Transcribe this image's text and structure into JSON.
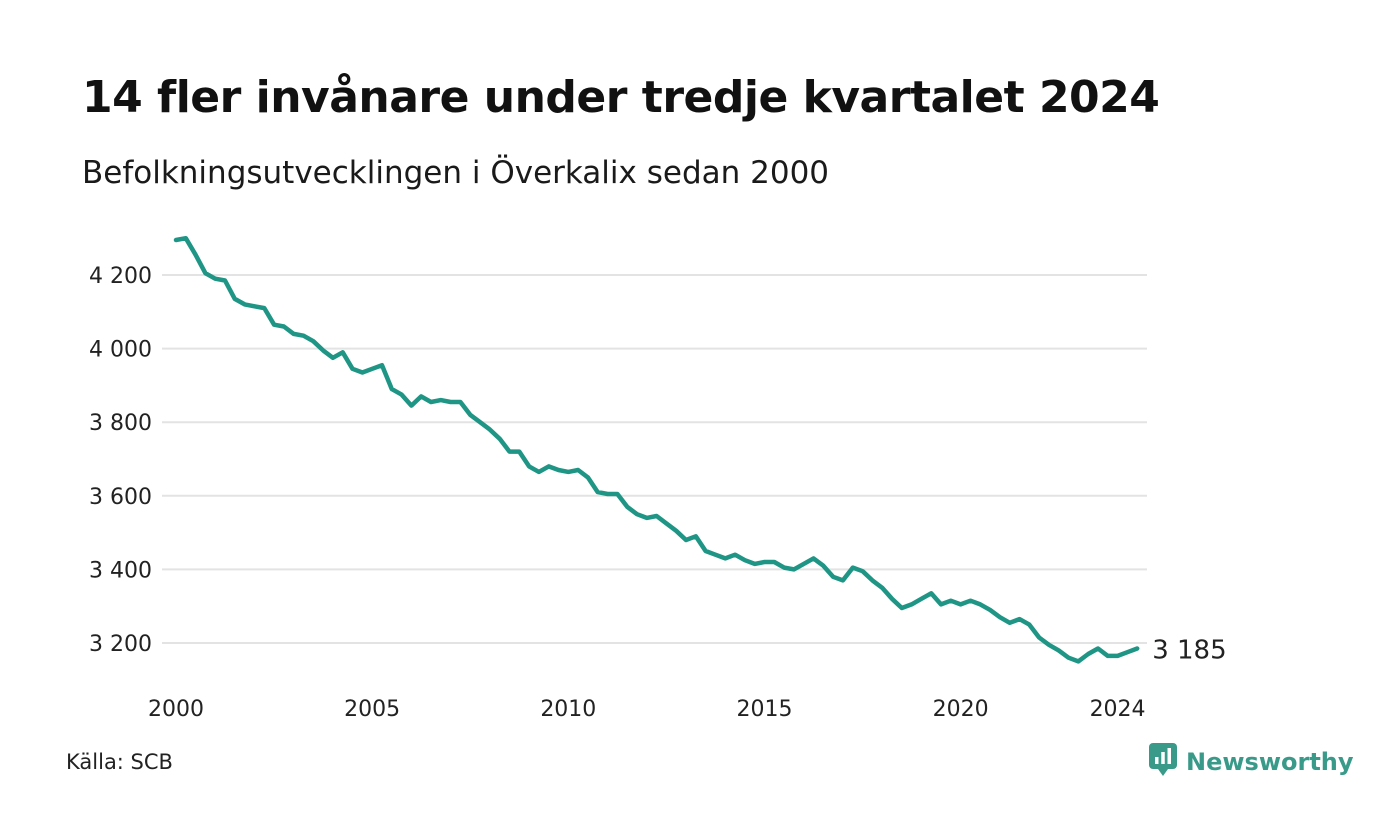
{
  "title": "14 fler invånare under tredje kvartalet 2024",
  "subtitle": "Befolkningsutvecklingen i Överkalix sedan 2000",
  "source": "Källa: SCB",
  "brand": {
    "name": "Newsworthy",
    "icon": "newsworthy-logo-icon",
    "color": "#3a9a8a"
  },
  "colors": {
    "line": "#1f9585",
    "grid": "#e3e3e3"
  },
  "chart_data": {
    "type": "line",
    "title": "14 fler invånare under tredje kvartalet 2024",
    "subtitle": "Befolkningsutvecklingen i Överkalix sedan 2000",
    "xlabel": "",
    "ylabel": "",
    "xlim": [
      2000,
      2024.75
    ],
    "ylim": [
      3150,
      4300
    ],
    "x_ticks": [
      2000,
      2005,
      2010,
      2015,
      2020,
      2024
    ],
    "x_tick_labels": [
      "2000",
      "2005",
      "2010",
      "2015",
      "2020",
      "2024"
    ],
    "y_ticks": [
      3200,
      3400,
      3600,
      3800,
      4000,
      4200
    ],
    "y_tick_labels": [
      "3 200",
      "3 400",
      "3 600",
      "3 800",
      "4 000",
      "4 200"
    ],
    "grid": "horizontal",
    "end_label": "3 185",
    "series": [
      {
        "x_start": 2000.0,
        "x_step": 0.25,
        "values": [
          4295,
          4300,
          4255,
          4205,
          4190,
          4185,
          4135,
          4120,
          4115,
          4110,
          4065,
          4060,
          4040,
          4035,
          4020,
          3995,
          3975,
          3990,
          3945,
          3935,
          3945,
          3955,
          3890,
          3875,
          3845,
          3870,
          3855,
          3860,
          3855,
          3855,
          3820,
          3800,
          3780,
          3755,
          3720,
          3720,
          3680,
          3665,
          3680,
          3670,
          3665,
          3670,
          3650,
          3610,
          3605,
          3605,
          3570,
          3550,
          3540,
          3545,
          3525,
          3505,
          3480,
          3490,
          3450,
          3440,
          3430,
          3440,
          3425,
          3415,
          3420,
          3420,
          3405,
          3400,
          3415,
          3430,
          3410,
          3380,
          3370,
          3405,
          3395,
          3370,
          3350,
          3320,
          3295,
          3305,
          3320,
          3335,
          3305,
          3315,
          3305,
          3315,
          3305,
          3290,
          3270,
          3255,
          3265,
          3250,
          3215,
          3195,
          3180,
          3160,
          3150,
          3170,
          3185,
          3165,
          3165,
          3175,
          3185
        ]
      }
    ]
  }
}
